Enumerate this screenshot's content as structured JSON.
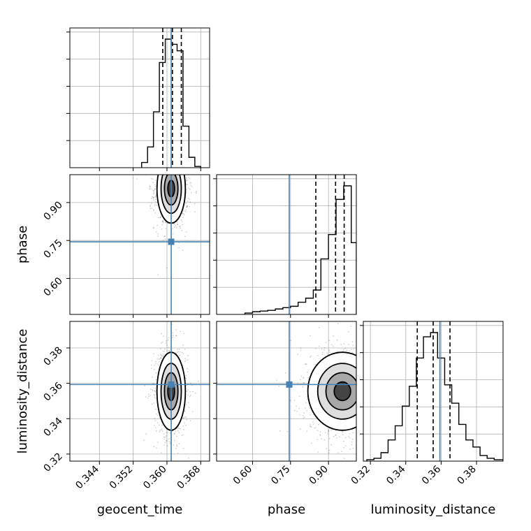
{
  "chart_data": {
    "type": "corner",
    "parameters": [
      "geocent_time",
      "phase",
      "luminosity_distance"
    ],
    "axis_labels": {
      "geocent_time": "geocent_time",
      "phase": "phase",
      "luminosity_distance": "luminosity_distance"
    },
    "ranges": {
      "geocent_time": [
        0.337,
        0.3701
      ],
      "phase": [
        0.458,
        1.01
      ],
      "luminosity_distance": [
        0.316,
        0.395
      ]
    },
    "ticks": {
      "geocent_time": {
        "values": [
          0.344,
          0.352,
          0.36,
          0.368
        ],
        "labels": [
          "0.344",
          "0.352",
          "0.360",
          "0.368"
        ]
      },
      "phase": {
        "values": [
          0.6,
          0.75,
          0.9
        ],
        "labels": [
          "0.60",
          "0.75",
          "0.90"
        ]
      },
      "luminosity_distance": {
        "values": [
          0.32,
          0.34,
          0.36,
          0.38
        ],
        "labels": [
          "0.32",
          "0.34",
          "0.36",
          "0.38"
        ]
      }
    },
    "truths": {
      "geocent_time": 0.361,
      "phase": 0.745,
      "luminosity_distance": 0.3593
    },
    "truth_color": "#4682b4",
    "quantiles": {
      "geocent_time": [
        0.359,
        0.3613,
        0.3634
      ],
      "phase": [
        0.85,
        0.928,
        0.962
      ],
      "luminosity_distance": [
        0.3465,
        0.3555,
        0.365
      ]
    },
    "histograms": {
      "geocent_time": {
        "edges": [
          0.354,
          0.3554,
          0.3568,
          0.3582,
          0.3596,
          0.361,
          0.3624,
          0.3638,
          0.3652,
          0.3666,
          0.368
        ],
        "counts": [
          0.04,
          0.16,
          0.43,
          0.81,
          0.99,
          0.95,
          0.9,
          0.32,
          0.08,
          0.01
        ]
      },
      "phase": {
        "edges": [
          0.57,
          0.6,
          0.63,
          0.66,
          0.69,
          0.72,
          0.75,
          0.78,
          0.81,
          0.84,
          0.87,
          0.9,
          0.93,
          0.96,
          0.99,
          1.01
        ],
        "counts": [
          0.01,
          0.02,
          0.025,
          0.03,
          0.04,
          0.05,
          0.06,
          0.09,
          0.12,
          0.18,
          0.41,
          0.59,
          0.85,
          0.95,
          0.53
        ]
      },
      "luminosity_distance": {
        "edges": [
          0.318,
          0.322,
          0.326,
          0.33,
          0.334,
          0.338,
          0.342,
          0.346,
          0.35,
          0.354,
          0.358,
          0.362,
          0.366,
          0.37,
          0.374,
          0.378,
          0.382,
          0.386,
          0.39,
          0.395
        ],
        "counts": [
          0.01,
          0.02,
          0.06,
          0.15,
          0.25,
          0.39,
          0.53,
          0.73,
          0.88,
          0.91,
          0.73,
          0.54,
          0.41,
          0.26,
          0.15,
          0.1,
          0.04,
          0.02,
          0.01
        ]
      }
    },
    "posterior_2d": [
      {
        "x": "geocent_time",
        "y": "phase",
        "x_center": 0.361,
        "y_center": 0.955,
        "x_sd": 0.0016,
        "y_sd": 0.065,
        "upper_bound_y": 1.0
      },
      {
        "x": "geocent_time",
        "y": "luminosity_distance",
        "x_center": 0.361,
        "y_center": 0.3555,
        "x_sd": 0.0016,
        "y_sd": 0.0105
      },
      {
        "x": "phase",
        "y": "luminosity_distance",
        "x_center": 0.955,
        "y_center": 0.3555,
        "x_sd": 0.065,
        "y_sd": 0.0105,
        "upper_bound_x": 1.0
      }
    ],
    "grid": true
  }
}
